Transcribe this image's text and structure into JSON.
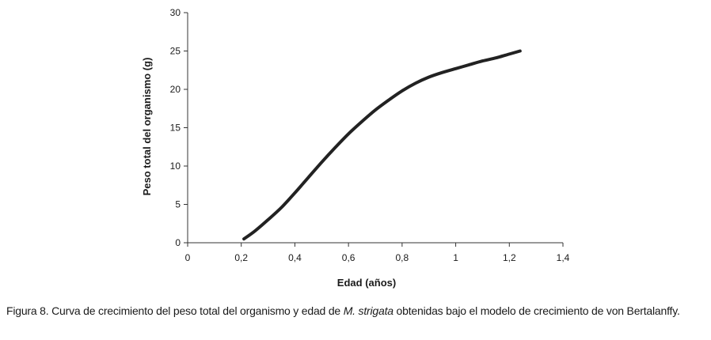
{
  "chart_data": {
    "type": "line",
    "xlabel": "Edad (años)",
    "ylabel": "Peso  total del organismo (g)",
    "xlim": [
      0,
      1.4
    ],
    "ylim": [
      0,
      30
    ],
    "x_ticks": [
      "0",
      "0,2",
      "0,4",
      "0,6",
      "0,8",
      "1",
      "1,2",
      "1,4"
    ],
    "y_ticks": [
      "0",
      "5",
      "10",
      "15",
      "20",
      "25",
      "30"
    ],
    "grid": false,
    "legend": "none",
    "line_color": "#222222",
    "series": [
      {
        "x": [
          0.21,
          0.25,
          0.3,
          0.35,
          0.4,
          0.45,
          0.5,
          0.55,
          0.6,
          0.65,
          0.7,
          0.75,
          0.8,
          0.85,
          0.9,
          0.95,
          1.0,
          1.05,
          1.1,
          1.15,
          1.2,
          1.24
        ],
        "y": [
          0.5,
          1.5,
          3.0,
          4.6,
          6.5,
          8.5,
          10.5,
          12.4,
          14.2,
          15.8,
          17.3,
          18.6,
          19.8,
          20.8,
          21.6,
          22.2,
          22.7,
          23.2,
          23.7,
          24.1,
          24.6,
          25.0
        ]
      }
    ]
  },
  "caption": {
    "prefix": "Figura 8. Curva de crecimiento del peso total del organismo y edad de ",
    "species": "M. strigata",
    "suffix": " obtenidas bajo el modelo de crecimiento de von Bertalanffy."
  }
}
